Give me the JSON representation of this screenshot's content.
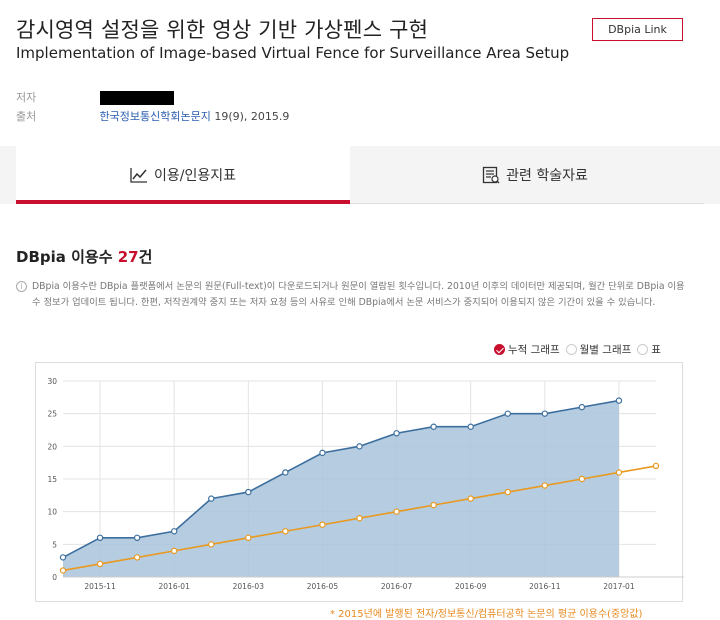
{
  "header": {
    "title_ko": "감시영역 설정을 위한 영상 기반 가상펜스 구현",
    "title_en": "Implementation of Image-based Virtual Fence for Surveillance Area Setup",
    "dbpia_link_label": "DBpia Link",
    "author_label": "저자",
    "source_label": "출처",
    "source_journal": "한국정보통신학회논문지",
    "source_issue": "19(9), 2015.9"
  },
  "tabs": [
    {
      "label": "이용/인용지표",
      "icon": "line-chart-icon",
      "active": true
    },
    {
      "label": "관련 학술자료",
      "icon": "document-list-icon",
      "active": false
    }
  ],
  "usage": {
    "title_prefix": "DBpia 이용수 ",
    "count": "27",
    "title_suffix": "건",
    "notice": "DBpia 이용수란 DBpia 플랫폼에서 논문의 원문(Full-text)이 다운로드되거나 원문이 열람된 횟수입니다. 2010년 이후의 데이터만 제공되며, 월간 단위로 DBpia 이용수 정보가 업데이트 됩니다. 한편, 저작권계약 중지 또는 저자 요청 등의 사유로 인해 DBpia에서 논문 서비스가 중지되어 이용되지 않은 기간이 있을 수 있습니다."
  },
  "view_options": [
    {
      "label": "누적 그래프",
      "selected": true
    },
    {
      "label": "월별 그래프",
      "selected": false
    },
    {
      "label": "표",
      "selected": false
    }
  ],
  "footnote": "* 2015년에 발행된 전자/정보통신/컴퓨터공학 논문의 평균 이용수(중앙값)",
  "colors": {
    "accent": "#c8102e",
    "series_fill": "#a9c4dc",
    "series_line": "#3d6f9e",
    "avg_line": "#e8991f"
  },
  "chart_data": {
    "type": "area",
    "x": [
      "2015-10",
      "2015-11",
      "2015-12",
      "2016-01",
      "2016-02",
      "2016-03",
      "2016-04",
      "2016-05",
      "2016-06",
      "2016-07",
      "2016-08",
      "2016-09",
      "2016-10",
      "2016-11",
      "2016-12",
      "2017-01",
      "2017-02"
    ],
    "x_tick_labels": [
      "2015-11",
      "2016-01",
      "2016-03",
      "2016-05",
      "2016-07",
      "2016-09",
      "2016-11",
      "2017-01"
    ],
    "ylim": [
      0,
      30
    ],
    "y_ticks": [
      "0",
      "5",
      "10",
      "15",
      "20",
      "25",
      "30"
    ],
    "grid": true,
    "series": [
      {
        "values": [
          3,
          6,
          6,
          7,
          12,
          13,
          16,
          19,
          20,
          22,
          23,
          23,
          25,
          25,
          26,
          27,
          null
        ]
      },
      {
        "values": [
          1,
          2,
          3,
          4,
          5,
          6,
          7,
          8,
          9,
          10,
          11,
          12,
          13,
          14,
          15,
          16,
          17
        ]
      }
    ]
  }
}
